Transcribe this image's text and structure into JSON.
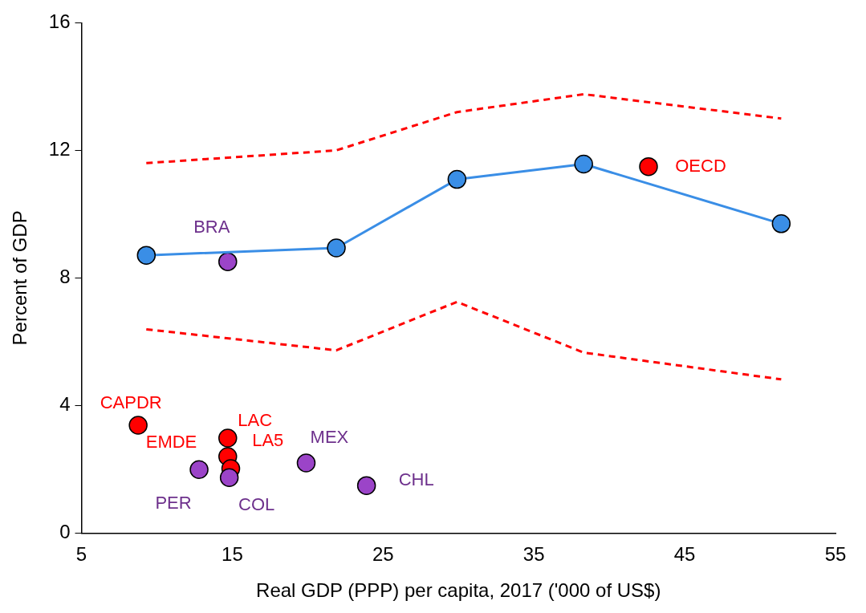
{
  "chart_data": {
    "type": "line",
    "xlabel": "Real GDP (PPP) per capita, 2017 ('000 of US$)",
    "ylabel": "Percent of GDP",
    "xlim": [
      5,
      55
    ],
    "xticks": [
      5,
      15,
      25,
      35,
      45,
      55
    ],
    "ylim": [
      0,
      16
    ],
    "yticks": [
      0,
      4,
      8,
      12,
      16
    ],
    "grid": false,
    "legend": false,
    "series": [
      {
        "color": "#ff0000",
        "line_style": "dashed",
        "marker": "none",
        "x": [
          9.3,
          21.9,
          29.9,
          38.3,
          51.4
        ],
        "values": [
          11.6,
          12.0,
          13.2,
          13.76,
          13.0
        ]
      },
      {
        "color": "#ff0000",
        "line_style": "dashed",
        "marker": "none",
        "x": [
          9.3,
          21.9,
          29.9,
          38.3,
          51.4
        ],
        "values": [
          6.39,
          5.73,
          7.25,
          5.66,
          4.82
        ]
      },
      {
        "color": "#3a8ee6",
        "line_style": "solid",
        "marker": "circle",
        "x": [
          9.3,
          21.9,
          29.9,
          38.3,
          51.4
        ],
        "values": [
          8.71,
          8.94,
          11.09,
          11.57,
          9.7
        ]
      },
      {
        "type": "scatter",
        "color": "#9b44c8",
        "marker": "circle",
        "x": [
          14.7,
          12.8,
          14.8,
          19.9,
          23.9
        ],
        "values": [
          8.51,
          1.99,
          1.74,
          2.2,
          1.49
        ]
      },
      {
        "type": "scatter",
        "color": "#ff0000",
        "marker": "circle",
        "x": [
          42.6,
          8.76,
          14.7,
          14.7,
          14.9
        ],
        "values": [
          11.49,
          3.38,
          2.98,
          2.4,
          2.02
        ]
      }
    ],
    "annotations": [
      {
        "text": "OECD",
        "x": 42.6,
        "y": 11.49
      },
      {
        "text": "BRA",
        "x": 14.7,
        "y": 8.51
      },
      {
        "text": "CAPDR",
        "x": 8.76,
        "y": 3.38
      },
      {
        "text": "LAC",
        "x": 14.7,
        "y": 2.98
      },
      {
        "text": "EMDE",
        "x": 14.9,
        "y": 2.02
      },
      {
        "text": "LA5",
        "x": 14.7,
        "y": 2.4
      },
      {
        "text": "MEX",
        "x": 19.9,
        "y": 2.2
      },
      {
        "text": "CHL",
        "x": 23.9,
        "y": 1.49
      },
      {
        "text": "PER",
        "x": 12.8,
        "y": 1.99
      },
      {
        "text": "COL",
        "x": 14.8,
        "y": 1.74
      }
    ]
  }
}
